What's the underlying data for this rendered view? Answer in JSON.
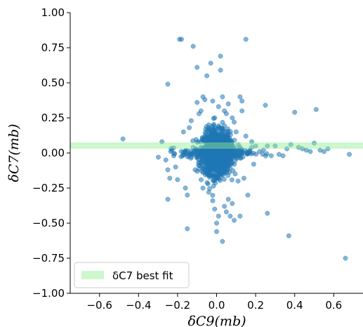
{
  "chart_data": {
    "type": "scatter",
    "title": "",
    "xlabel": "δC9(mb)",
    "ylabel": "δC7(mb)",
    "xlim": [
      -0.75,
      0.75
    ],
    "ylim": [
      -1.0,
      1.0
    ],
    "xticks": [
      -0.6,
      -0.4,
      -0.2,
      0.0,
      0.2,
      0.4,
      0.6
    ],
    "xtick_labels": [
      "−0.6",
      "−0.4",
      "−0.2",
      "0.0",
      "0.2",
      "0.4",
      "0.6"
    ],
    "yticks": [
      -1.0,
      -0.75,
      -0.5,
      -0.25,
      0.0,
      0.25,
      0.5,
      0.75,
      1.0
    ],
    "ytick_labels": [
      "−1.00",
      "−0.75",
      "−0.50",
      "−0.25",
      "0.00",
      "0.25",
      "0.50",
      "0.75",
      "1.00"
    ],
    "grid": false,
    "best_fit_band": {
      "label": "δC7 best fit",
      "y_low": 0.03,
      "y_high": 0.075,
      "color": "#90ee90"
    },
    "legend_placement": "lower-left",
    "marker_color": "#1f77b4",
    "points": [
      [
        -0.48,
        0.1
      ],
      [
        -0.28,
        0.08
      ],
      [
        -0.26,
        -0.05
      ],
      [
        -0.25,
        -0.12
      ],
      [
        -0.24,
        -0.18
      ],
      [
        -0.25,
        -0.33
      ],
      [
        -0.25,
        0.49
      ],
      [
        -0.23,
        0.02
      ],
      [
        -0.22,
        -0.02
      ],
      [
        -0.21,
        -0.1
      ],
      [
        -0.2,
        -0.19
      ],
      [
        -0.19,
        0.81
      ],
      [
        -0.18,
        0.81
      ],
      [
        -0.17,
        0.15
      ],
      [
        -0.16,
        -0.25
      ],
      [
        -0.15,
        -0.3
      ],
      [
        -0.15,
        -0.54
      ],
      [
        -0.14,
        0.18
      ],
      [
        -0.13,
        0.23
      ],
      [
        -0.12,
        0.76
      ],
      [
        -0.12,
        0.04
      ],
      [
        -0.11,
        -0.12
      ],
      [
        -0.1,
        0.36
      ],
      [
        -0.1,
        0.61
      ],
      [
        -0.09,
        0.28
      ],
      [
        -0.08,
        0.3
      ],
      [
        -0.07,
        0.4
      ],
      [
        -0.07,
        -0.25
      ],
      [
        -0.06,
        0.38
      ],
      [
        -0.05,
        0.55
      ],
      [
        -0.04,
        0.2
      ],
      [
        -0.04,
        -0.28
      ],
      [
        -0.03,
        0.64
      ],
      [
        -0.02,
        0.37
      ],
      [
        -0.02,
        -0.34
      ],
      [
        -0.01,
        -0.4
      ],
      [
        -0.01,
        0.25
      ],
      [
        0.0,
        -0.5
      ],
      [
        0.0,
        -0.56
      ],
      [
        0.01,
        -0.45
      ],
      [
        0.01,
        0.33
      ],
      [
        0.02,
        0.69
      ],
      [
        0.02,
        0.59
      ],
      [
        0.03,
        -0.63
      ],
      [
        0.03,
        0.4
      ],
      [
        0.04,
        -0.38
      ],
      [
        0.04,
        0.3
      ],
      [
        0.05,
        -0.42
      ],
      [
        0.05,
        0.28
      ],
      [
        0.06,
        -0.33
      ],
      [
        0.06,
        0.35
      ],
      [
        0.07,
        -0.45
      ],
      [
        0.08,
        -0.36
      ],
      [
        0.08,
        0.25
      ],
      [
        0.09,
        -0.48
      ],
      [
        0.09,
        0.22
      ],
      [
        0.1,
        0.15
      ],
      [
        0.11,
        -0.2
      ],
      [
        0.12,
        0.4
      ],
      [
        0.12,
        -0.45
      ],
      [
        0.13,
        0.37
      ],
      [
        0.13,
        0.3
      ],
      [
        0.14,
        -0.18
      ],
      [
        0.15,
        0.81
      ],
      [
        0.15,
        0.12
      ],
      [
        0.16,
        -0.3
      ],
      [
        0.17,
        0.02
      ],
      [
        0.18,
        0.08
      ],
      [
        0.19,
        -0.08
      ],
      [
        0.2,
        0.05
      ],
      [
        0.22,
        0.01
      ],
      [
        0.24,
        0.02
      ],
      [
        0.25,
        0.34
      ],
      [
        0.26,
        -0.43
      ],
      [
        0.26,
        0.05
      ],
      [
        0.28,
        -0.02
      ],
      [
        0.3,
        0.05
      ],
      [
        0.32,
        -0.01
      ],
      [
        0.34,
        -0.02
      ],
      [
        0.36,
        0.03
      ],
      [
        0.37,
        -0.59
      ],
      [
        0.38,
        0.06
      ],
      [
        0.4,
        0.29
      ],
      [
        0.42,
        0.04
      ],
      [
        0.44,
        0.03
      ],
      [
        0.46,
        0.02
      ],
      [
        0.48,
        0.01
      ],
      [
        0.5,
        0.07
      ],
      [
        0.51,
        0.31
      ],
      [
        0.53,
        0.02
      ],
      [
        0.55,
        0.01
      ],
      [
        0.57,
        0.03
      ],
      [
        0.66,
        -0.75
      ],
      [
        0.68,
        -0.01
      ]
    ]
  }
}
